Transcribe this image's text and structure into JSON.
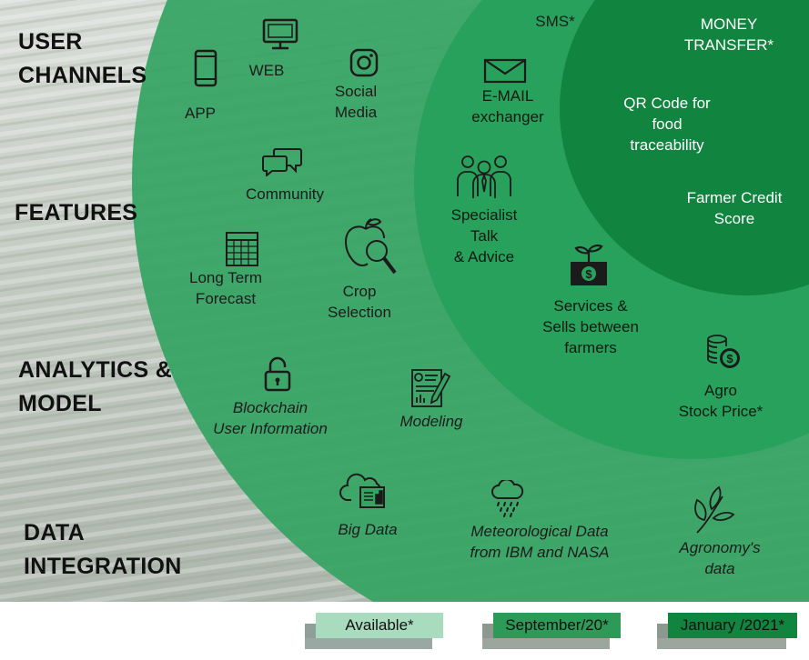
{
  "sections": {
    "user_channels": [
      "USER",
      "CHANNELS"
    ],
    "features": "FEATURES",
    "analytics": [
      "ANALYTICS &",
      "MODEL"
    ],
    "data_integration": [
      "DATA",
      "INTEGRATION"
    ]
  },
  "items": {
    "app": "APP",
    "web": "WEB",
    "social": [
      "Social",
      "Media"
    ],
    "sms": "SMS*",
    "email": [
      "E-MAIL",
      "exchanger"
    ],
    "money": [
      "MONEY",
      "TRANSFER*"
    ],
    "qr": [
      "QR Code for",
      "food",
      "traceability"
    ],
    "community": "Community",
    "credit": [
      "Farmer Credit",
      "Score"
    ],
    "specialist": [
      "Specialist",
      "Talk",
      "& Advice"
    ],
    "forecast": [
      "Long Term",
      "Forecast"
    ],
    "crop": [
      "Crop",
      "Selection"
    ],
    "services": [
      "Services &",
      "Sells between",
      "farmers"
    ],
    "agro": [
      "Agro",
      "Stock Price*"
    ],
    "blockchain": [
      "Blockchain",
      "User Information"
    ],
    "modeling": "Modeling",
    "bigdata": "Big Data",
    "meteo": [
      "Meteorological Data",
      "from IBM and  NASA"
    ],
    "agronomy": [
      "Agronomy's",
      "data"
    ]
  },
  "legend": [
    {
      "label": "Available*",
      "color": "#a9dbbf"
    },
    {
      "label": "September/20*",
      "color": "#2e9a57"
    },
    {
      "label": "January /2021*",
      "color": "#11843f"
    }
  ],
  "colors": {
    "outer_circle": "#35a463",
    "middle_circle": "#26a05a",
    "inner_circle": "#11843f",
    "field_base": "#bfc6bf"
  }
}
